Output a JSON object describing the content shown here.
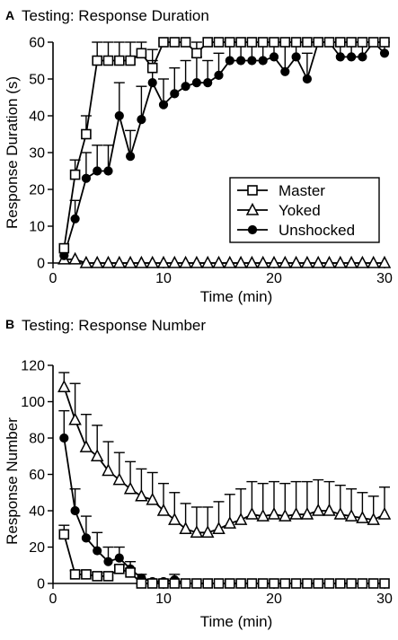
{
  "chart_data": [
    {
      "panel": "A",
      "type": "line",
      "title": "Testing: Response Duration",
      "xlabel": "Time (min)",
      "ylabel": "Response Duration (s)",
      "xlim": [
        0,
        30
      ],
      "ylim": [
        0,
        60
      ],
      "xticks": [
        0,
        10,
        20,
        30
      ],
      "yticks": [
        0,
        10,
        20,
        30,
        40,
        50,
        60
      ],
      "legend_position": "lower-right",
      "grid": false,
      "x": [
        1,
        2,
        3,
        4,
        5,
        6,
        7,
        8,
        9,
        10,
        11,
        12,
        13,
        14,
        15,
        16,
        17,
        18,
        19,
        20,
        21,
        22,
        23,
        24,
        25,
        26,
        27,
        28,
        29,
        30
      ],
      "series": [
        {
          "name": "Master",
          "marker": "square-open",
          "values": [
            4,
            24,
            35,
            55,
            55,
            55,
            55,
            57,
            53,
            60,
            60,
            60,
            57,
            60,
            60,
            60,
            60,
            60,
            60,
            60,
            60,
            60,
            60,
            60,
            60,
            60,
            60,
            60,
            60,
            60
          ],
          "error": [
            0,
            4,
            5,
            5,
            5,
            5,
            5,
            3,
            5,
            0,
            0,
            0,
            3,
            0,
            0,
            0,
            0,
            0,
            0,
            0,
            0,
            0,
            0,
            0,
            0,
            0,
            0,
            0,
            0,
            0
          ]
        },
        {
          "name": "Yoked",
          "marker": "triangle-open",
          "values": [
            1,
            1,
            0,
            0,
            0,
            0,
            0,
            0,
            0,
            0,
            0,
            0,
            0,
            0,
            0,
            0,
            0,
            0,
            0,
            0,
            0,
            0,
            0,
            0,
            0,
            0,
            0,
            0,
            0,
            0
          ],
          "error": [
            0,
            0,
            0,
            0,
            0,
            0,
            0,
            0,
            0,
            0,
            0,
            0,
            0,
            0,
            0,
            0,
            0,
            0,
            0,
            0,
            0,
            0,
            0,
            0,
            0,
            0,
            0,
            0,
            0,
            0
          ]
        },
        {
          "name": "Unshocked",
          "marker": "circle-filled",
          "values": [
            2,
            12,
            23,
            25,
            25,
            40,
            29,
            39,
            49,
            43,
            46,
            48,
            49,
            49,
            51,
            55,
            55,
            55,
            55,
            56,
            52,
            56,
            50,
            60,
            60,
            56,
            56,
            56,
            60,
            57
          ],
          "error": [
            0,
            5,
            7,
            7,
            7,
            9,
            7,
            9,
            6,
            7,
            7,
            7,
            7,
            6,
            6,
            5,
            5,
            5,
            5,
            5,
            7,
            4,
            7,
            0,
            0,
            4,
            4,
            4,
            0,
            3
          ]
        }
      ]
    },
    {
      "panel": "B",
      "type": "line",
      "title": "Testing: Response Number",
      "xlabel": "Time (min)",
      "ylabel": "Response Number",
      "xlim": [
        0,
        30
      ],
      "ylim": [
        0,
        120
      ],
      "xticks": [
        0,
        10,
        20,
        30
      ],
      "yticks": [
        0,
        20,
        40,
        60,
        80,
        100,
        120
      ],
      "grid": false,
      "x": [
        1,
        2,
        3,
        4,
        5,
        6,
        7,
        8,
        9,
        10,
        11,
        12,
        13,
        14,
        15,
        16,
        17,
        18,
        19,
        20,
        21,
        22,
        23,
        24,
        25,
        26,
        27,
        28,
        29,
        30
      ],
      "series": [
        {
          "name": "Master",
          "marker": "square-open",
          "values": [
            27,
            5,
            5,
            4,
            4,
            8,
            6,
            0,
            0,
            0,
            0,
            0,
            0,
            0,
            0,
            0,
            0,
            0,
            0,
            0,
            0,
            0,
            0,
            0,
            0,
            0,
            0,
            0,
            0,
            0
          ],
          "error": [
            5,
            2,
            2,
            2,
            2,
            2,
            2,
            0,
            0,
            0,
            0,
            0,
            0,
            0,
            0,
            0,
            0,
            0,
            0,
            0,
            0,
            0,
            0,
            0,
            0,
            0,
            0,
            0,
            0,
            0
          ]
        },
        {
          "name": "Yoked",
          "marker": "triangle-open",
          "values": [
            108,
            90,
            75,
            70,
            62,
            57,
            52,
            48,
            46,
            40,
            35,
            30,
            28,
            28,
            30,
            33,
            35,
            38,
            37,
            38,
            37,
            38,
            38,
            40,
            40,
            38,
            37,
            36,
            35,
            38
          ],
          "error": [
            8,
            20,
            18,
            17,
            16,
            15,
            15,
            15,
            15,
            15,
            15,
            14,
            14,
            14,
            15,
            16,
            17,
            18,
            18,
            18,
            18,
            18,
            18,
            17,
            16,
            16,
            15,
            14,
            13,
            15
          ]
        },
        {
          "name": "Unshocked",
          "marker": "circle-filled",
          "values": [
            80,
            40,
            25,
            18,
            12,
            14,
            8,
            3,
            1,
            1,
            2,
            0,
            0,
            0,
            0,
            0,
            0,
            0,
            0,
            0,
            0,
            0,
            0,
            0,
            0,
            0,
            0,
            0,
            0,
            0
          ],
          "error": [
            15,
            12,
            12,
            10,
            8,
            6,
            4,
            2,
            1,
            1,
            3,
            0,
            0,
            0,
            0,
            0,
            0,
            0,
            0,
            0,
            0,
            0,
            0,
            0,
            0,
            0,
            0,
            0,
            0,
            0
          ]
        }
      ]
    }
  ]
}
